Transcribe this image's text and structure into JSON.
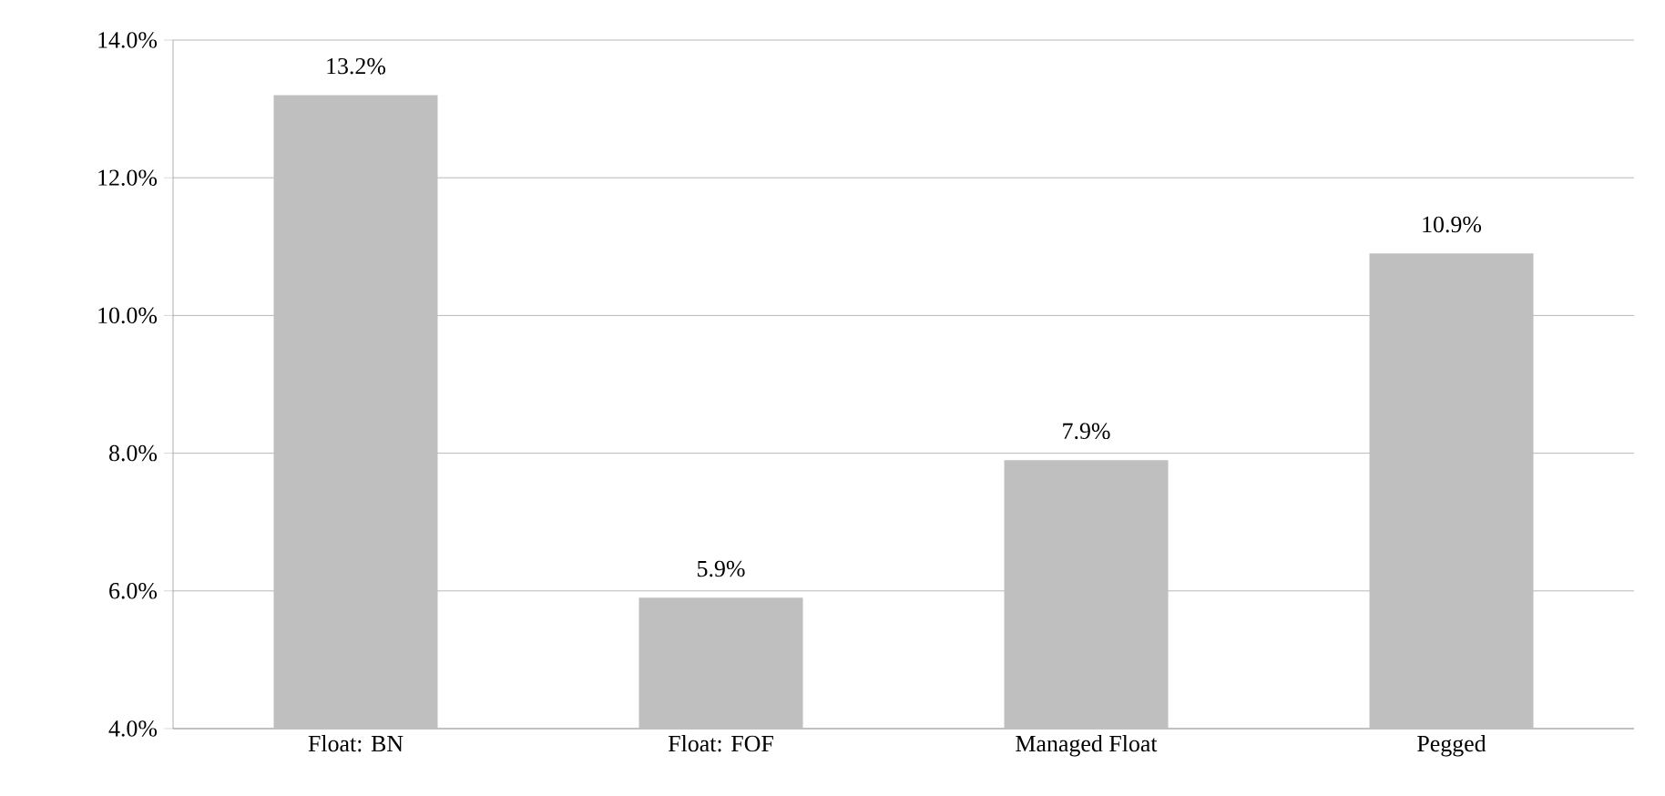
{
  "chart_data": {
    "type": "bar",
    "categories": [
      "Float: BN",
      "Float: FOF",
      "Managed Float",
      "Pegged"
    ],
    "values": [
      13.2,
      5.9,
      7.9,
      10.9
    ],
    "value_labels": [
      "13.2%",
      "5.9%",
      "7.9%",
      "10.9%"
    ],
    "color": "#bfbfbf",
    "ylim": [
      4,
      14
    ],
    "yticks": [
      {
        "value": 4,
        "label": "4.0%"
      },
      {
        "value": 6,
        "label": "6.0%"
      },
      {
        "value": 8,
        "label": "8.0%"
      },
      {
        "value": 10,
        "label": "10.0%"
      },
      {
        "value": 12,
        "label": "12.0%"
      },
      {
        "value": 14,
        "label": "14.0%"
      }
    ],
    "grid": "y"
  }
}
